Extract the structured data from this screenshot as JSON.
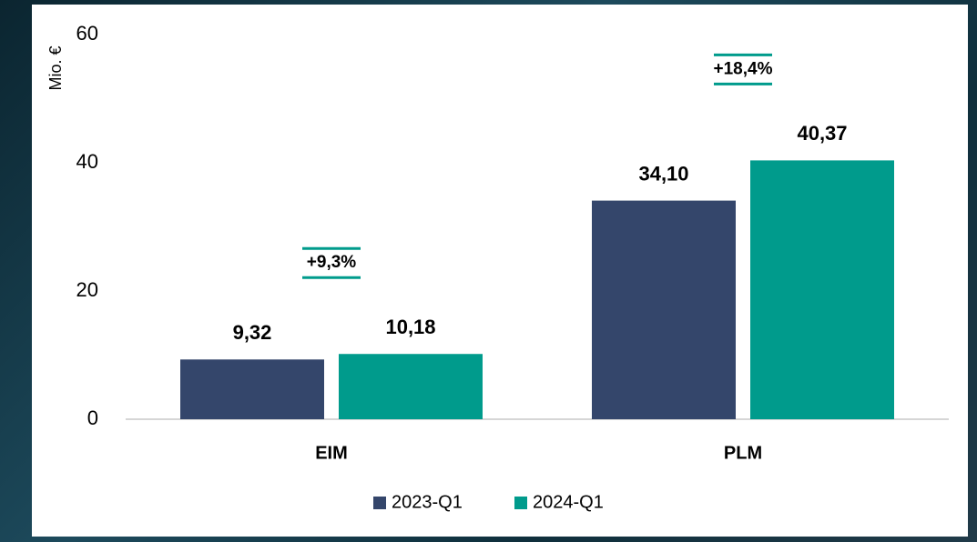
{
  "chart_data": {
    "type": "bar",
    "y_label": "Mio. €",
    "categories": [
      "EIM",
      "PLM"
    ],
    "series": [
      {
        "name": "2023-Q1",
        "color": "#34466b",
        "values": [
          9.32,
          34.1
        ],
        "value_labels": [
          "9,32",
          "34,10"
        ]
      },
      {
        "name": "2024-Q1",
        "color": "#009b8c",
        "values": [
          10.18,
          40.37
        ],
        "value_labels": [
          "10,18",
          "40,37"
        ]
      }
    ],
    "annotations": [
      "+9,3%",
      "+18,4%"
    ],
    "ylim": [
      0,
      60
    ],
    "yticks": [
      0,
      20,
      40,
      60
    ],
    "legend": "bottom"
  }
}
